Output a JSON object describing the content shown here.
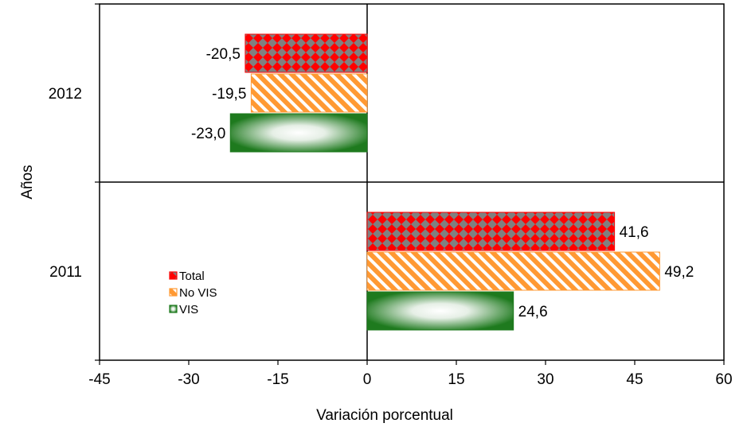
{
  "chart_data": {
    "type": "bar",
    "orientation": "horizontal",
    "title": "",
    "xlabel": "Variación porcentual",
    "ylabel": "Años",
    "xlim": [
      -45,
      60
    ],
    "xticks": [
      -45,
      -30,
      -15,
      0,
      15,
      30,
      45,
      60
    ],
    "categories": [
      "2012",
      "2011"
    ],
    "series": [
      {
        "name": "Total",
        "values": [
          -20.5,
          41.6
        ],
        "labels": [
          "-20,5",
          "41,6"
        ],
        "color": "#ff0000",
        "pattern": "checker",
        "pattern_color": "#808080"
      },
      {
        "name": "No VIS",
        "values": [
          -19.5,
          49.2
        ],
        "labels": [
          "-19,5",
          "49,2"
        ],
        "color": "#ff9933",
        "pattern": "diagonal-stripes",
        "pattern_color": "#ffffff"
      },
      {
        "name": "VIS",
        "values": [
          -23.0,
          24.6
        ],
        "labels": [
          "-23,0",
          "24,6"
        ],
        "color": "#1e7a1e",
        "pattern": "radial-gradient",
        "pattern_color": "#ffffff"
      }
    ],
    "legend_position": "left",
    "grid": false
  }
}
